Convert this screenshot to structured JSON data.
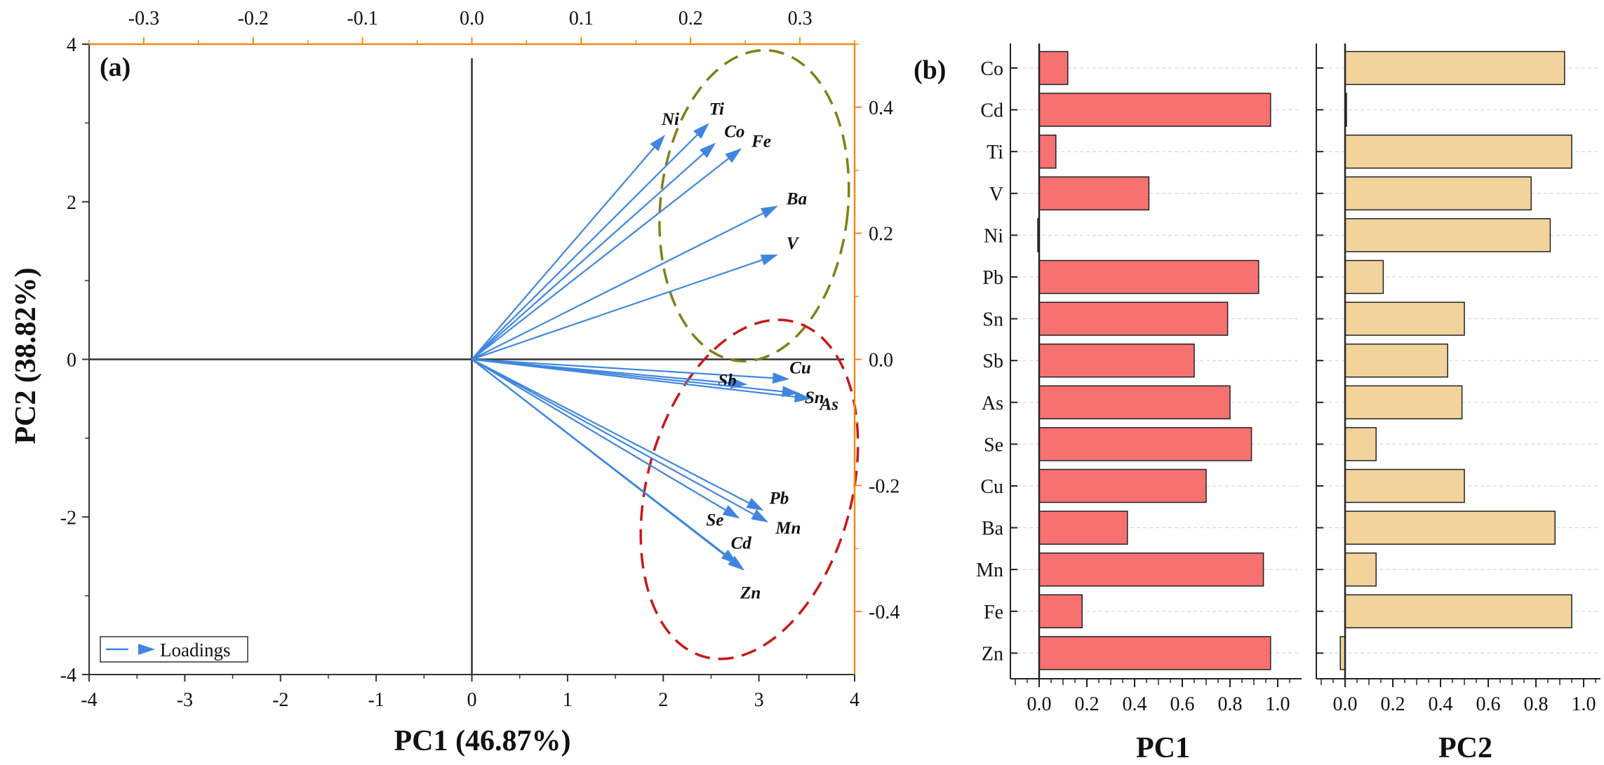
{
  "chart_data": [
    {
      "type": "scatter",
      "subtype": "biplot",
      "panel_label": "(a)",
      "xlabel": "PC1 (46.87%)",
      "ylabel": "PC2 (38.82%)",
      "xlim": [
        -4,
        4
      ],
      "ylim": [
        -4,
        4
      ],
      "x_ticks": [
        "-4",
        "-3",
        "-2",
        "-1",
        "0",
        "1",
        "2",
        "3",
        "4"
      ],
      "y_ticks": [
        "-4",
        "-2",
        "0",
        "2",
        "4"
      ],
      "top_axis": {
        "range": [
          -0.35,
          0.35
        ],
        "ticks": [
          "-0.3",
          "-0.2",
          "-0.1",
          "0.0",
          "0.1",
          "0.2",
          "0.3"
        ],
        "color": "#f08a1c"
      },
      "right_axis": {
        "range": [
          -0.5,
          0.5
        ],
        "ticks": [
          "0.4",
          "0.2",
          "0.0",
          "-0.2",
          "-0.4"
        ],
        "color": "#f08a1c"
      },
      "legend": {
        "label": "Loadings",
        "position": "bottom-left"
      },
      "vector_color": "#3f86e0",
      "vectors": [
        {
          "name": "Ni",
          "x": 2.02,
          "y": 2.85
        },
        {
          "name": "Ti",
          "x": 2.48,
          "y": 3.0
        },
        {
          "name": "Co",
          "x": 2.55,
          "y": 2.75
        },
        {
          "name": "Fe",
          "x": 2.82,
          "y": 2.68
        },
        {
          "name": "Ba",
          "x": 3.2,
          "y": 1.95
        },
        {
          "name": "V",
          "x": 3.2,
          "y": 1.33
        },
        {
          "name": "Cu",
          "x": 3.32,
          "y": -0.25
        },
        {
          "name": "Sb",
          "x": 2.88,
          "y": -0.32
        },
        {
          "name": "Sn",
          "x": 3.42,
          "y": -0.43
        },
        {
          "name": "As",
          "x": 3.55,
          "y": -0.5
        },
        {
          "name": "Pb",
          "x": 3.05,
          "y": -1.92
        },
        {
          "name": "Mn",
          "x": 3.1,
          "y": -2.07
        },
        {
          "name": "Se",
          "x": 2.8,
          "y": -2.02
        },
        {
          "name": "Cd",
          "x": 2.78,
          "y": -2.6
        },
        {
          "name": "Zn",
          "x": 2.85,
          "y": -2.68
        }
      ],
      "ellipses": [
        {
          "group": "upper",
          "color": "#808018",
          "cx": 2.95,
          "cy": 1.95,
          "rx": 0.98,
          "ry": 1.98,
          "rotate": 6
        },
        {
          "group": "lower",
          "color": "#c81818",
          "cx": 2.9,
          "cy": -1.65,
          "rx": 1.07,
          "ry": 2.2,
          "rotate": 15
        }
      ]
    },
    {
      "type": "bar",
      "orientation": "horizontal",
      "panel_label": "(b)",
      "categories": [
        "Co",
        "Cd",
        "Ti",
        "V",
        "Ni",
        "Pb",
        "Sn",
        "Sb",
        "As",
        "Se",
        "Cu",
        "Ba",
        "Mn",
        "Fe",
        "Zn"
      ],
      "series": [
        {
          "name": "PC1",
          "color": "#f87171",
          "values": [
            0.12,
            0.97,
            0.07,
            0.46,
            -0.005,
            0.92,
            0.79,
            0.65,
            0.8,
            0.89,
            0.7,
            0.37,
            0.94,
            0.18,
            0.97
          ]
        },
        {
          "name": "PC2",
          "color": "#f2d39b",
          "values": [
            0.92,
            0.0,
            0.95,
            0.78,
            0.86,
            0.16,
            0.5,
            0.43,
            0.49,
            0.13,
            0.5,
            0.88,
            0.13,
            0.95,
            -0.02
          ]
        }
      ],
      "x_ticks": [
        "0.0",
        "0.2",
        "0.4",
        "0.6",
        "0.8",
        "1.0"
      ],
      "xlim": [
        -0.12,
        1.05
      ]
    }
  ]
}
